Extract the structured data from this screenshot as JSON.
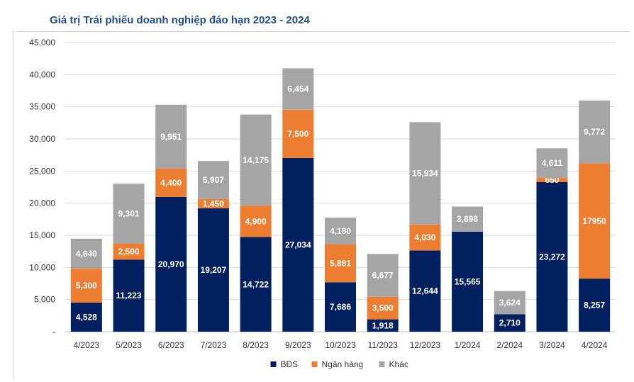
{
  "chart_data": {
    "type": "bar",
    "stacked": true,
    "title": "Giá trị Trái phiếu doanh nghiệp đáo hạn 2023 - 2024",
    "xlabel": "",
    "ylabel": "",
    "ylim": [
      0,
      45000
    ],
    "yticks": [
      0,
      5000,
      10000,
      15000,
      20000,
      25000,
      30000,
      35000,
      40000,
      45000
    ],
    "ytick_labels": [
      "-",
      "5,000",
      "10,000",
      "15,000",
      "20,000",
      "25,000",
      "30,000",
      "35,000",
      "40,000",
      "45,000"
    ],
    "categories": [
      "4/2023",
      "5/2023",
      "6/2023",
      "7/2023",
      "8/2023",
      "9/2023",
      "10/2023",
      "11/2023",
      "12/2023",
      "1/2024",
      "2/2024",
      "3/2024",
      "4/2024"
    ],
    "series": [
      {
        "name": "BĐS",
        "color": "#002060",
        "label_color": "#ffffff",
        "values": [
          4528,
          11223,
          20970,
          19207,
          14722,
          27034,
          7686,
          1918,
          12644,
          15565,
          2710,
          23272,
          8257
        ],
        "labels": [
          "4,528",
          "11,223",
          "20,970",
          "19,207",
          "14,722",
          "27,034",
          "7,686",
          "1,918",
          "12,644",
          "15,565",
          "2,710",
          "23,272",
          "8,257"
        ]
      },
      {
        "name": "Ngân hàng",
        "color": "#ed7d31",
        "label_color": "#ffffff",
        "values": [
          5300,
          2500,
          4400,
          1450,
          4900,
          7500,
          5881,
          3500,
          4030,
          0,
          0,
          650,
          17950
        ],
        "labels": [
          "5,300",
          "2,500",
          "4,400",
          "1,450",
          "4,900",
          "7,500",
          "5,881",
          "3,500",
          "4,030",
          "",
          "",
          "650",
          "17950"
        ]
      },
      {
        "name": "Khác",
        "color": "#a5a5a5",
        "label_color": "#ffffff",
        "values": [
          4640,
          9301,
          9951,
          5907,
          14175,
          6454,
          4180,
          6677,
          15934,
          3898,
          3624,
          4611,
          9772
        ],
        "labels": [
          "4,640",
          "9,301",
          "9,951",
          "5,907",
          "14,175",
          "6,454",
          "4,180",
          "6,677",
          "15,934",
          "3,898",
          "3,624",
          "4,611",
          "9,772"
        ]
      }
    ],
    "legend_position": "bottom-center",
    "grid": true
  }
}
